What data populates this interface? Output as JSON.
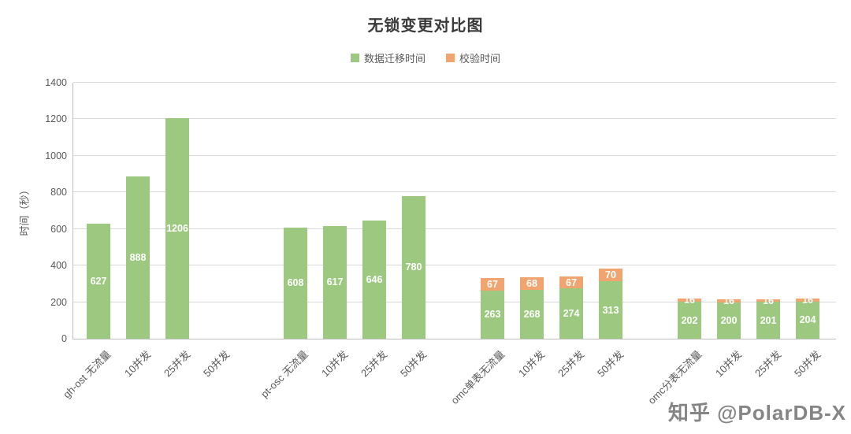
{
  "watermark": {
    "text": "知乎 @PolarDB-X"
  },
  "chart_data": {
    "type": "bar",
    "stacked": true,
    "title": "无锁变更对比图",
    "ylabel": "时间（秒）",
    "ylim": [
      0,
      1400
    ],
    "ytick_step": 200,
    "grid": true,
    "legend_position": "top",
    "colors": {
      "migration": "#9cc97f",
      "verify": "#f0a470"
    },
    "categories": [
      "gh-ost 无流量",
      "10并发",
      "25并发",
      "50并发",
      "pt-osc 无流量",
      "10并发",
      "25并发",
      "50并发",
      "omc单表无流量",
      "10并发",
      "25并发",
      "50并发",
      "omc分表无流量",
      "10并发",
      "25并发",
      "50并发"
    ],
    "group_size": 4,
    "series": [
      {
        "name": "数据迁移时间",
        "values": [
          627,
          888,
          1206,
          null,
          608,
          617,
          646,
          780,
          263,
          268,
          274,
          313,
          202,
          200,
          201,
          204
        ]
      },
      {
        "name": "校验时间",
        "values": [
          null,
          null,
          null,
          null,
          null,
          null,
          null,
          null,
          67,
          68,
          67,
          70,
          16,
          16,
          16,
          16
        ]
      }
    ]
  }
}
